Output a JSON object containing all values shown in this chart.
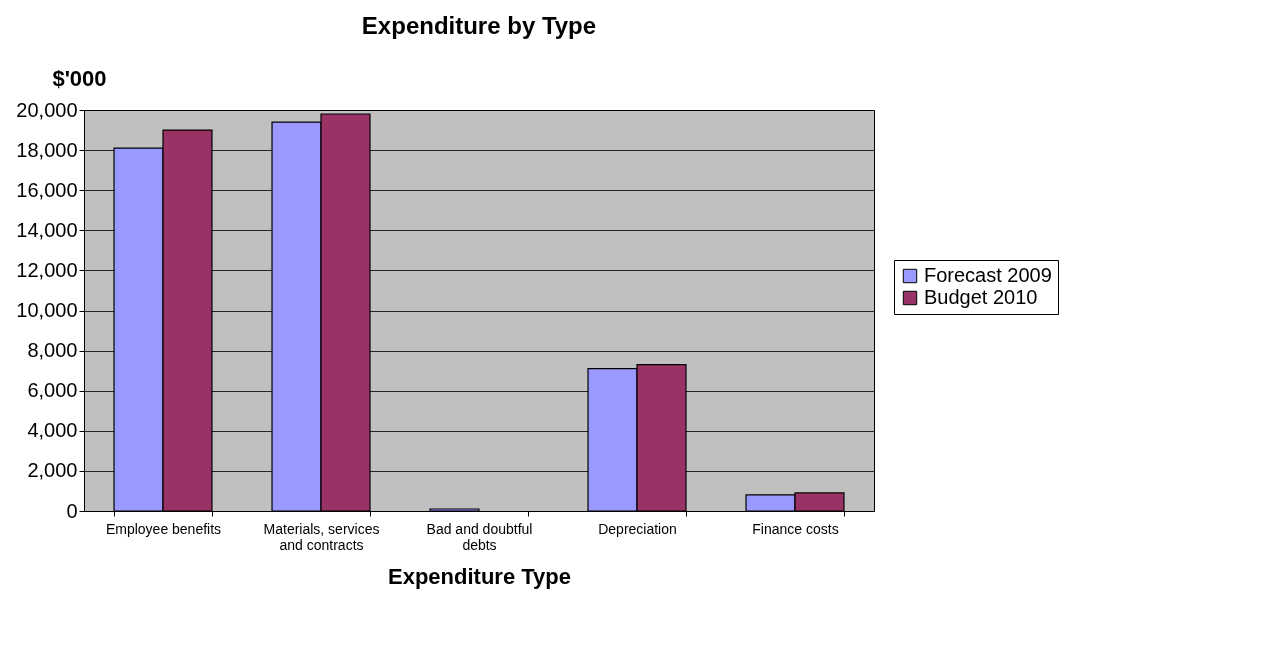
{
  "chart_data": {
    "type": "bar",
    "title": "Expenditure by Type",
    "xlabel": "Expenditure Type",
    "ylabel": "$'000",
    "categories": [
      "Employee benefits",
      "Materials, services and contracts",
      "Bad and doubtful debts",
      "Depreciation",
      "Finance costs"
    ],
    "series": [
      {
        "name": "Forecast 2009",
        "color": "#9999ff",
        "values": [
          18100,
          19400,
          100,
          7100,
          800
        ]
      },
      {
        "name": "Budget 2010",
        "color": "#993366",
        "values": [
          19000,
          19800,
          null,
          7300,
          900
        ]
      }
    ],
    "ylim": [
      0,
      20000
    ],
    "yticks": [
      0,
      {
        "value": 2000,
        "label": "2,000"
      },
      {
        "value": 4000,
        "label": "4,000"
      },
      {
        "value": 6000,
        "label": "6,000"
      },
      {
        "value": 8000,
        "label": "8,000"
      },
      {
        "value": 10000,
        "label": "10,000"
      },
      {
        "value": 12000,
        "label": "12,000"
      },
      {
        "value": 14000,
        "label": "14,000"
      },
      {
        "value": 16000,
        "label": "16,000"
      },
      {
        "value": 18000,
        "label": "18,000"
      },
      {
        "value": 20000,
        "label": "20,000"
      }
    ],
    "grid": "y",
    "legend": "right"
  }
}
